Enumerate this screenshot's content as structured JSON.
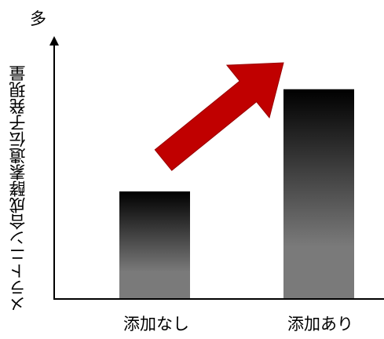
{
  "chart_data": {
    "type": "bar",
    "categories": [
      "添加なし",
      "添加あり"
    ],
    "values": [
      1.0,
      1.95
    ],
    "ylabel": "メラトニン合成酵素遺伝子発現量",
    "y_max_label": "多",
    "ylim": [
      0,
      2.05
    ],
    "grid": false,
    "y_ticks": false,
    "annotation": {
      "type": "arrow",
      "meaning": "increase",
      "color": "#C00000"
    },
    "bar_gradient": {
      "top": "#000000",
      "bottom": "#7a7a7a"
    },
    "colors": {
      "axis": "#000000",
      "arrow": "#C00000",
      "arrow_stroke": "#9a0000"
    }
  }
}
